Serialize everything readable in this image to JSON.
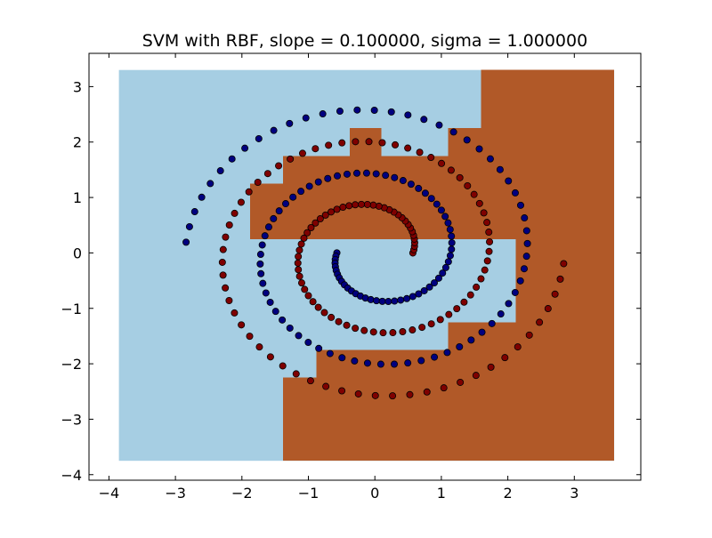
{
  "chart_data": {
    "type": "scatter",
    "title": "SVM with RBF, slope = 0.100000, sigma = 1.000000",
    "xlabel": "",
    "ylabel": "",
    "xlim": [
      -4.3,
      4.0
    ],
    "ylim": [
      -4.1,
      3.6
    ],
    "x_ticks": [
      "−4",
      "−3",
      "−2",
      "−1",
      "0",
      "1",
      "2",
      "3"
    ],
    "x_tick_values": [
      -4,
      -3,
      -2,
      -1,
      0,
      1,
      2,
      3
    ],
    "y_ticks": [
      "3",
      "2",
      "1",
      "0",
      "−1",
      "−2",
      "−3",
      "−4"
    ],
    "y_tick_values": [
      3,
      2,
      1,
      0,
      -1,
      -2,
      -3,
      -4
    ],
    "grid": false,
    "colors": {
      "region_class_0": "#a6cee3",
      "region_class_1": "#b15928",
      "point_class_0": "#00007f",
      "point_class_1": "#7f0000",
      "point_edge": "#000000"
    },
    "decision_regions": {
      "x_range": [
        -3.85,
        3.6
      ],
      "y_range": [
        -3.75,
        3.3
      ],
      "class_1_rects": [
        {
          "x": [
            1.6,
            3.6
          ],
          "y": [
            2.25,
            3.3
          ]
        },
        {
          "x": [
            1.1,
            3.6
          ],
          "y": [
            1.75,
            2.25
          ]
        },
        {
          "x": [
            -0.38,
            0.1
          ],
          "y": [
            1.75,
            2.25
          ]
        },
        {
          "x": [
            -1.38,
            3.6
          ],
          "y": [
            0.25,
            1.75
          ]
        },
        {
          "x": [
            -1.88,
            -1.38
          ],
          "y": [
            0.25,
            1.25
          ]
        },
        {
          "x": [
            2.12,
            3.6
          ],
          "y": [
            -1.25,
            0.25
          ]
        },
        {
          "x": [
            1.1,
            3.6
          ],
          "y": [
            -1.75,
            -1.25
          ]
        },
        {
          "x": [
            -0.88,
            3.6
          ],
          "y": [
            -2.25,
            -1.75
          ]
        },
        {
          "x": [
            -1.38,
            3.6
          ],
          "y": [
            -3.75,
            -2.25
          ]
        }
      ]
    },
    "series": [
      {
        "class": 0,
        "spiral": {
          "theta_start": 3.14,
          "theta_end": 15.7,
          "step": 0.1,
          "radius_per_radian": 0.182,
          "phase": 0
        }
      },
      {
        "class": 1,
        "spiral": {
          "theta_start": 3.14,
          "theta_end": 15.7,
          "step": 0.1,
          "radius_per_radian": 0.182,
          "phase": 3.14159
        }
      }
    ]
  }
}
